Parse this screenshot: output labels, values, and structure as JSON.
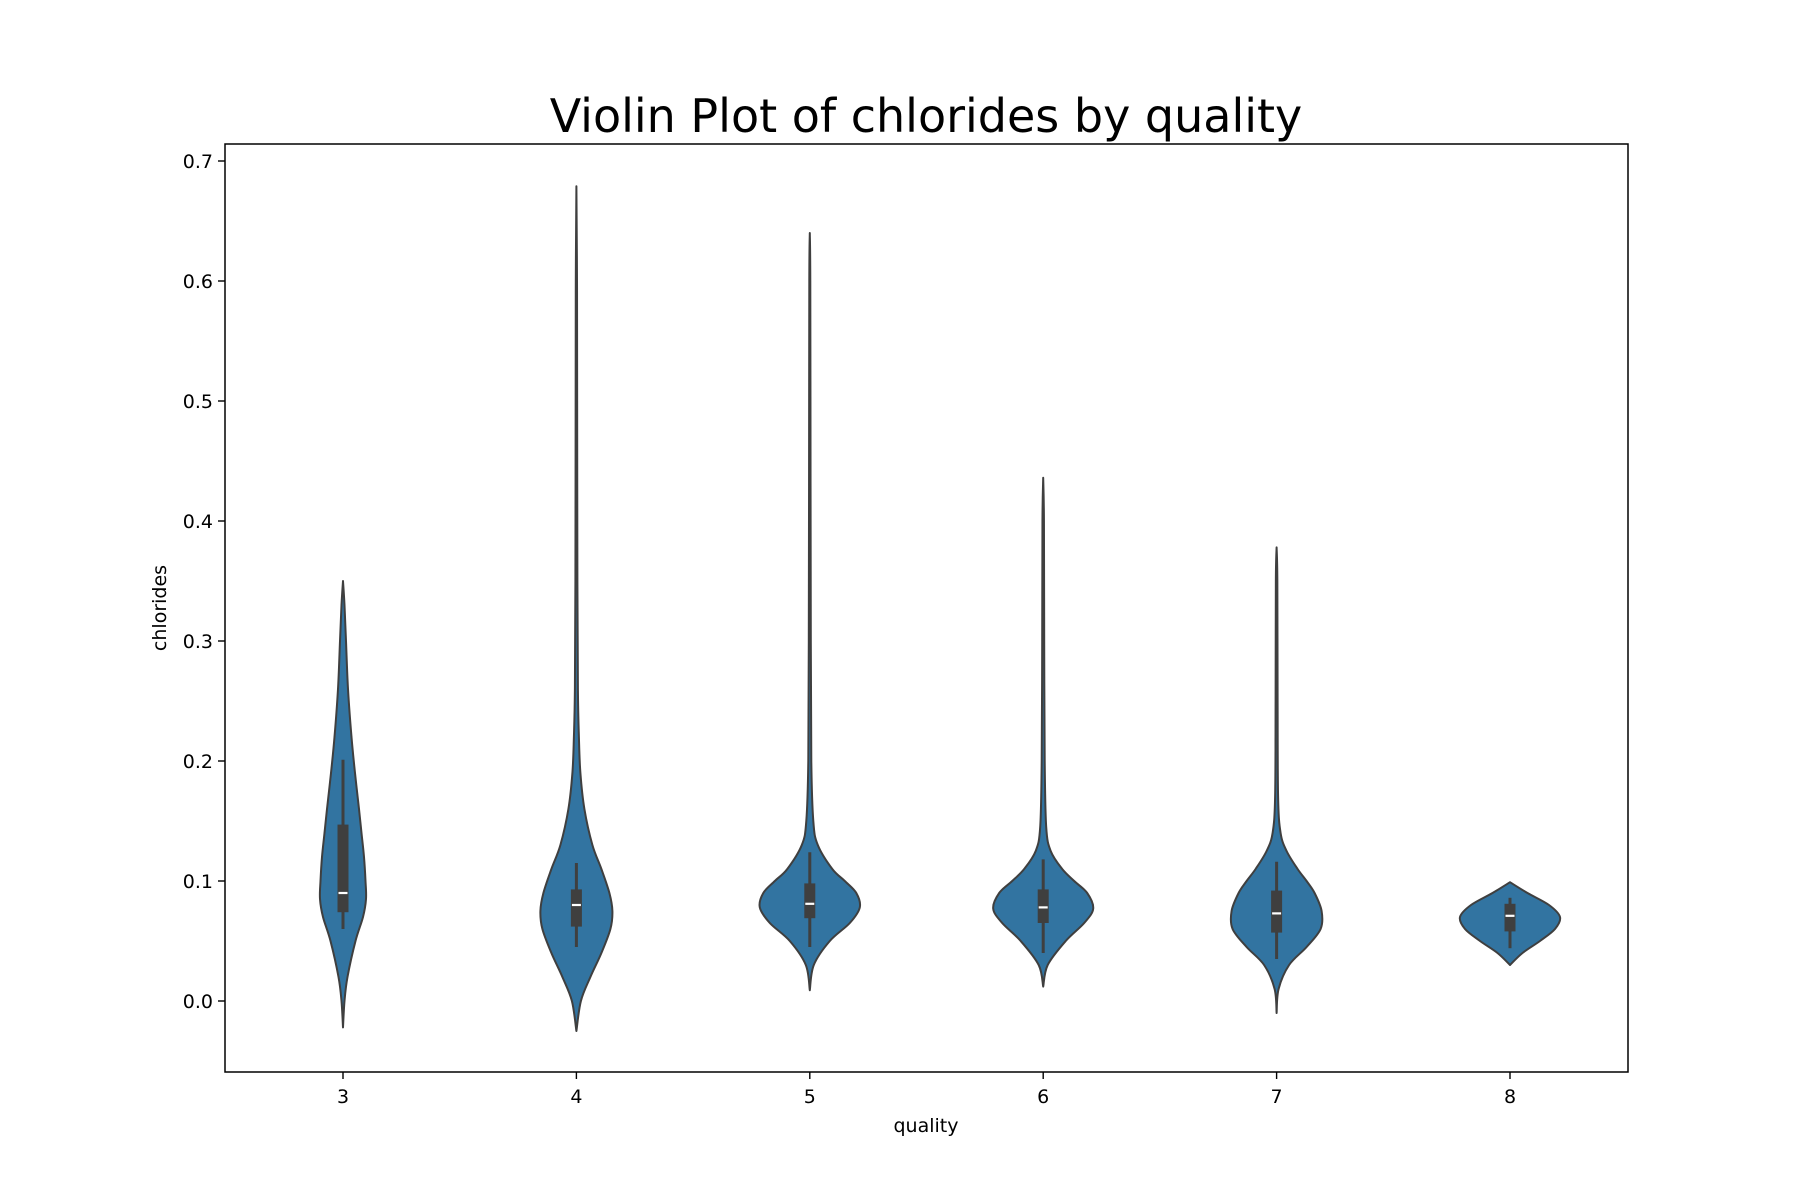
{
  "chart_data": {
    "type": "violin",
    "title": "Violin Plot of chlorides by quality",
    "xlabel": "quality",
    "ylabel": "chlorides",
    "categories": [
      "3",
      "4",
      "5",
      "6",
      "7",
      "8"
    ],
    "ylim": [
      -0.06,
      0.715
    ],
    "yticks": [
      "0.0",
      "0.1",
      "0.2",
      "0.3",
      "0.4",
      "0.5",
      "0.6",
      "0.7"
    ],
    "grid": false,
    "legend": "none",
    "colors": {
      "violin_fill": "#3274a1",
      "outline": "#3f3f3f",
      "box": "#3f3f3f",
      "median": "#ffffff"
    },
    "violins": [
      {
        "category": "3",
        "min": 0.06,
        "q1": 0.074,
        "median": 0.09,
        "q3": 0.147,
        "max": 0.201,
        "density": [
          [
            -0.022,
            0.0
          ],
          [
            0.0,
            0.03
          ],
          [
            0.02,
            0.09
          ],
          [
            0.05,
            0.25
          ],
          [
            0.07,
            0.4
          ],
          [
            0.085,
            0.46
          ],
          [
            0.1,
            0.45
          ],
          [
            0.12,
            0.42
          ],
          [
            0.14,
            0.37
          ],
          [
            0.16,
            0.32
          ],
          [
            0.19,
            0.24
          ],
          [
            0.22,
            0.17
          ],
          [
            0.26,
            0.1
          ],
          [
            0.3,
            0.06
          ],
          [
            0.33,
            0.03
          ],
          [
            0.35,
            0.0
          ]
        ]
      },
      {
        "category": "4",
        "min": 0.045,
        "q1": 0.062,
        "median": 0.08,
        "q3": 0.093,
        "max": 0.115,
        "density": [
          [
            -0.025,
            0.0
          ],
          [
            0.0,
            0.09
          ],
          [
            0.02,
            0.28
          ],
          [
            0.04,
            0.5
          ],
          [
            0.06,
            0.68
          ],
          [
            0.075,
            0.72
          ],
          [
            0.09,
            0.66
          ],
          [
            0.11,
            0.5
          ],
          [
            0.13,
            0.32
          ],
          [
            0.16,
            0.16
          ],
          [
            0.19,
            0.08
          ],
          [
            0.22,
            0.05
          ],
          [
            0.26,
            0.03
          ],
          [
            0.35,
            0.02
          ],
          [
            0.5,
            0.015
          ],
          [
            0.6,
            0.012
          ],
          [
            0.679,
            0.0
          ]
        ]
      },
      {
        "category": "5",
        "min": 0.045,
        "q1": 0.069,
        "median": 0.081,
        "q3": 0.098,
        "max": 0.124,
        "density": [
          [
            0.009,
            0.0
          ],
          [
            0.03,
            0.08
          ],
          [
            0.05,
            0.4
          ],
          [
            0.065,
            0.8
          ],
          [
            0.078,
            1.0
          ],
          [
            0.09,
            0.93
          ],
          [
            0.1,
            0.7
          ],
          [
            0.11,
            0.45
          ],
          [
            0.13,
            0.16
          ],
          [
            0.15,
            0.07
          ],
          [
            0.2,
            0.03
          ],
          [
            0.3,
            0.02
          ],
          [
            0.43,
            0.015
          ],
          [
            0.6,
            0.01
          ],
          [
            0.64,
            0.0
          ]
        ]
      },
      {
        "category": "6",
        "min": 0.04,
        "q1": 0.065,
        "median": 0.078,
        "q3": 0.093,
        "max": 0.118,
        "density": [
          [
            0.012,
            0.0
          ],
          [
            0.03,
            0.09
          ],
          [
            0.05,
            0.45
          ],
          [
            0.065,
            0.82
          ],
          [
            0.077,
            1.0
          ],
          [
            0.09,
            0.88
          ],
          [
            0.1,
            0.62
          ],
          [
            0.11,
            0.38
          ],
          [
            0.125,
            0.15
          ],
          [
            0.145,
            0.06
          ],
          [
            0.2,
            0.03
          ],
          [
            0.3,
            0.02
          ],
          [
            0.4,
            0.015
          ],
          [
            0.436,
            0.0
          ]
        ]
      },
      {
        "category": "7",
        "min": 0.035,
        "q1": 0.057,
        "median": 0.073,
        "q3": 0.092,
        "max": 0.116,
        "density": [
          [
            -0.01,
            0.0
          ],
          [
            0.01,
            0.04
          ],
          [
            0.03,
            0.25
          ],
          [
            0.045,
            0.6
          ],
          [
            0.06,
            0.88
          ],
          [
            0.075,
            0.9
          ],
          [
            0.09,
            0.76
          ],
          [
            0.1,
            0.6
          ],
          [
            0.11,
            0.42
          ],
          [
            0.125,
            0.2
          ],
          [
            0.14,
            0.08
          ],
          [
            0.17,
            0.03
          ],
          [
            0.25,
            0.02
          ],
          [
            0.35,
            0.015
          ],
          [
            0.378,
            0.0
          ]
        ]
      },
      {
        "category": "8",
        "min": 0.044,
        "q1": 0.058,
        "median": 0.071,
        "q3": 0.081,
        "max": 0.086,
        "density": [
          [
            0.03,
            0.0
          ],
          [
            0.04,
            0.25
          ],
          [
            0.05,
            0.6
          ],
          [
            0.06,
            0.9
          ],
          [
            0.07,
            1.0
          ],
          [
            0.08,
            0.78
          ],
          [
            0.09,
            0.35
          ],
          [
            0.099,
            0.0
          ]
        ]
      }
    ]
  }
}
